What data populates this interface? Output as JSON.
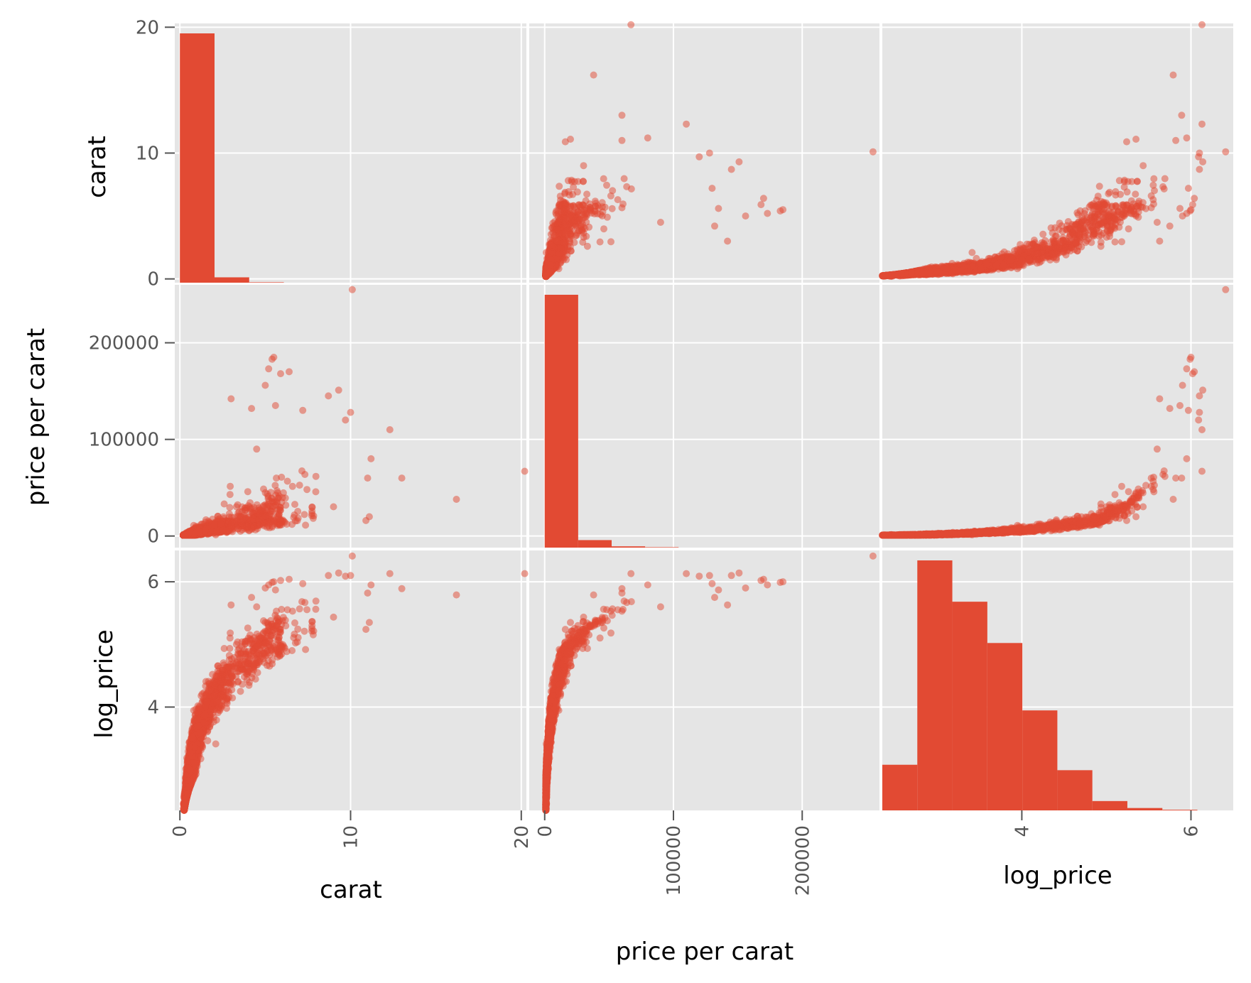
{
  "colors": {
    "panel_bg": "#e5e5e5",
    "grid": "#ffffff",
    "mark": "#e24a33",
    "tick": "#555555"
  },
  "chart_data": {
    "type": "scatter",
    "kind": "scatter-matrix",
    "grid": true,
    "variables": [
      {
        "name": "carat",
        "label": "carat",
        "range": [
          -0.3,
          20.3
        ],
        "ticks": [
          0,
          10,
          20
        ]
      },
      {
        "name": "price per carat",
        "label": "price per carat",
        "range": [
          -12000,
          260000
        ],
        "ticks": [
          0,
          100000,
          200000
        ]
      },
      {
        "name": "log_price",
        "label": "log_price",
        "range": [
          2.35,
          6.5
        ],
        "ticks": [
          4,
          6
        ]
      }
    ],
    "histograms": {
      "carat": {
        "bin_edges": [
          0,
          2.03,
          4.06,
          6.09,
          8.12,
          10.15,
          12.18,
          14.21,
          16.24,
          18.27,
          20.3
        ],
        "counts": [
          65200,
          1400,
          120,
          15,
          6,
          4,
          3,
          1,
          1,
          1
        ]
      },
      "price per carat": {
        "bin_edges": [
          0,
          26000,
          52000,
          78000,
          104000,
          130000,
          156000,
          182000,
          208000,
          234000,
          260000
        ],
        "counts": [
          64000,
          1900,
          320,
          110,
          40,
          15,
          8,
          3,
          1,
          1
        ]
      },
      "log_price": {
        "bin_edges": [
          2.35,
          2.764,
          3.178,
          3.592,
          4.006,
          4.42,
          4.834,
          5.248,
          5.662,
          6.076,
          6.49
        ],
        "counts": [
          2100,
          11500,
          9600,
          7700,
          4600,
          1850,
          430,
          110,
          30,
          6
        ]
      }
    },
    "outliers": [
      {
        "carat": 20.2,
        "price per carat": 67000,
        "log_price": 6.13
      },
      {
        "carat": 16.2,
        "price per carat": 38000,
        "log_price": 5.79
      },
      {
        "carat": 13.0,
        "price per carat": 60000,
        "log_price": 5.89
      },
      {
        "carat": 12.3,
        "price per carat": 110000,
        "log_price": 6.13
      },
      {
        "carat": 11.2,
        "price per carat": 80000,
        "log_price": 5.95
      },
      {
        "carat": 11.0,
        "price per carat": 60000,
        "log_price": 5.82
      },
      {
        "carat": 11.1,
        "price per carat": 20000,
        "log_price": 5.35
      },
      {
        "carat": 10.9,
        "price per carat": 16000,
        "log_price": 5.24
      },
      {
        "carat": 10.1,
        "price per carat": 255000,
        "log_price": 6.41
      },
      {
        "carat": 10.0,
        "price per carat": 128000,
        "log_price": 6.1
      },
      {
        "carat": 9.7,
        "price per carat": 120000,
        "log_price": 6.09
      },
      {
        "carat": 9.3,
        "price per carat": 151000,
        "log_price": 6.14
      },
      {
        "carat": 8.7,
        "price per carat": 145000,
        "log_price": 6.1
      },
      {
        "carat": 7.2,
        "price per carat": 130000,
        "log_price": 5.97
      },
      {
        "carat": 6.4,
        "price per carat": 170000,
        "log_price": 6.04
      },
      {
        "carat": 5.9,
        "price per carat": 168000,
        "log_price": 6.02
      },
      {
        "carat": 5.5,
        "price per carat": 185000,
        "log_price": 6.0
      },
      {
        "carat": 5.4,
        "price per carat": 183000,
        "log_price": 5.99
      },
      {
        "carat": 5.2,
        "price per carat": 173000,
        "log_price": 5.95
      },
      {
        "carat": 5.0,
        "price per carat": 156000,
        "log_price": 5.9
      },
      {
        "carat": 4.2,
        "price per carat": 132000,
        "log_price": 5.75
      },
      {
        "carat": 4.5,
        "price per carat": 90000,
        "log_price": 5.6
      },
      {
        "carat": 5.6,
        "price per carat": 135000,
        "log_price": 5.87
      },
      {
        "carat": 3.0,
        "price per carat": 142000,
        "log_price": 5.63
      }
    ],
    "xlabel": "",
    "ylabel": ""
  }
}
